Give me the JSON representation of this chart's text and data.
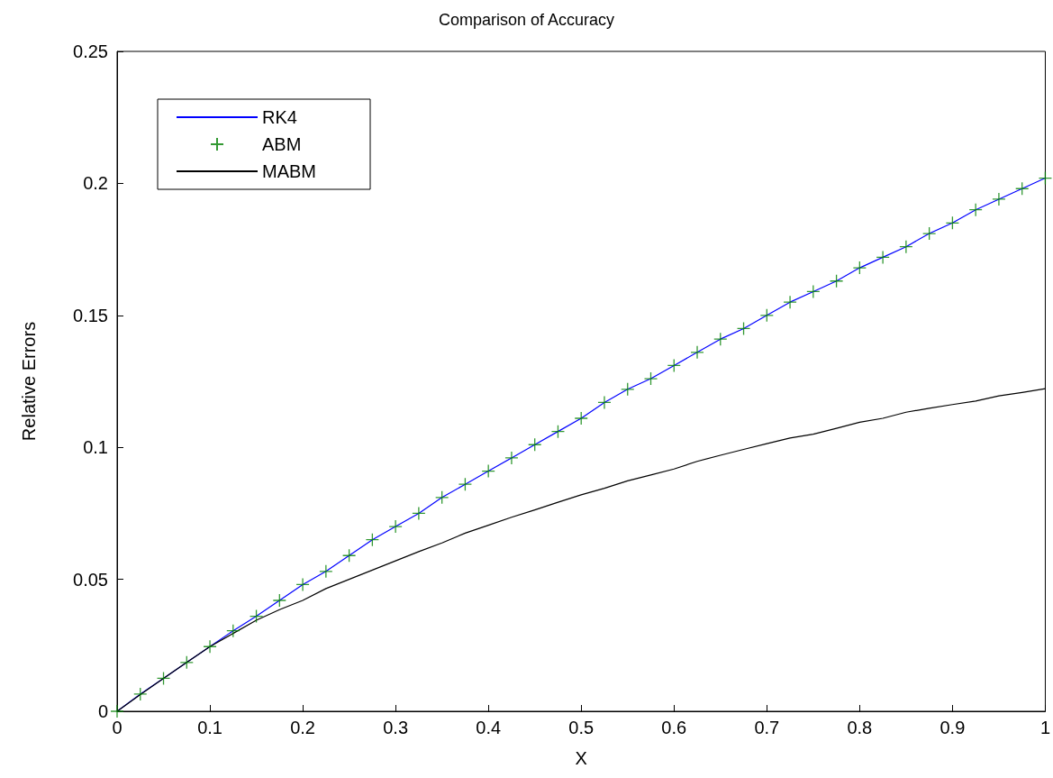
{
  "chart_data": {
    "type": "line",
    "title": "Comparison of Accuracy",
    "xlabel": "X",
    "ylabel": "Relative Errors",
    "x": [
      0,
      0.025,
      0.05,
      0.075,
      0.1,
      0.125,
      0.15,
      0.175,
      0.2,
      0.225,
      0.25,
      0.275,
      0.3,
      0.325,
      0.35,
      0.375,
      0.4,
      0.425,
      0.45,
      0.475,
      0.5,
      0.525,
      0.55,
      0.575,
      0.6,
      0.625,
      0.65,
      0.675,
      0.7,
      0.725,
      0.75,
      0.775,
      0.8,
      0.825,
      0.85,
      0.875,
      0.9,
      0.925,
      0.95,
      0.975,
      1
    ],
    "series": [
      {
        "name": "RK4",
        "color": "#0000ff",
        "marker": "none",
        "values": [
          0,
          0.0065,
          0.0125,
          0.0185,
          0.0245,
          0.0305,
          0.036,
          0.042,
          0.048,
          0.053,
          0.059,
          0.065,
          0.07,
          0.075,
          0.081,
          0.086,
          0.091,
          0.096,
          0.101,
          0.106,
          0.111,
          0.117,
          0.122,
          0.126,
          0.131,
          0.136,
          0.141,
          0.145,
          0.15,
          0.155,
          0.159,
          0.163,
          0.168,
          0.172,
          0.176,
          0.181,
          0.185,
          0.19,
          0.194,
          0.198,
          0.202
        ]
      },
      {
        "name": "ABM",
        "type": "scatter",
        "color": "#008000",
        "marker": "cross",
        "values": [
          0,
          0.0065,
          0.0125,
          0.0185,
          0.0245,
          0.0305,
          0.036,
          0.042,
          0.048,
          0.053,
          0.059,
          0.065,
          0.07,
          0.075,
          0.081,
          0.086,
          0.091,
          0.096,
          0.101,
          0.106,
          0.111,
          0.117,
          0.122,
          0.126,
          0.131,
          0.136,
          0.141,
          0.145,
          0.15,
          0.155,
          0.159,
          0.163,
          0.168,
          0.172,
          0.176,
          0.181,
          0.185,
          0.19,
          0.194,
          0.198,
          0.202
        ]
      },
      {
        "name": "MABM",
        "color": "#000000",
        "marker": "none",
        "values": [
          0,
          0.0063,
          0.0125,
          0.0185,
          0.0245,
          0.0295,
          0.0345,
          0.0385,
          0.042,
          0.0465,
          0.05,
          0.0535,
          0.057,
          0.0605,
          0.0638,
          0.0675,
          0.0705,
          0.0735,
          0.0763,
          0.0792,
          0.082,
          0.0845,
          0.0873,
          0.0895,
          0.0918,
          0.0947,
          0.097,
          0.0992,
          0.1014,
          0.1035,
          0.105,
          0.1072,
          0.1095,
          0.111,
          0.1133,
          0.1148,
          0.1162,
          0.1175,
          0.1195,
          0.1208,
          0.1222
        ]
      }
    ],
    "xlim": [
      0,
      1
    ],
    "xticks": [
      0,
      0.1,
      0.2,
      0.3,
      0.4,
      0.5,
      0.6,
      0.7,
      0.8,
      0.9,
      1
    ],
    "ylim": [
      0,
      0.25
    ],
    "yticks": [
      0,
      0.05,
      0.1,
      0.15,
      0.2,
      0.25
    ],
    "grid": false,
    "legend": "top left"
  }
}
